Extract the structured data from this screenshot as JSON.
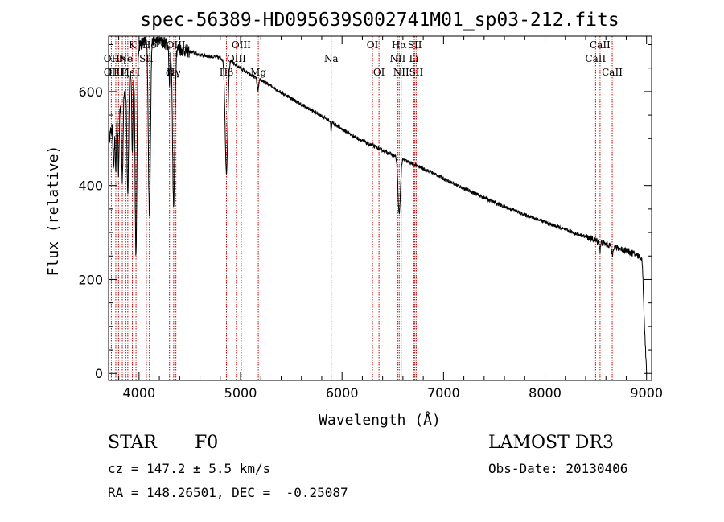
{
  "chart_data": {
    "type": "line",
    "title": "spec-56389-HD095639S002741M01_sp03-212.fits",
    "xlabel": "Wavelength (Å)",
    "ylabel": "Flux (relative)",
    "xlim": [
      3700,
      9050
    ],
    "ylim": [
      -15,
      718
    ],
    "xticks": [
      4000,
      5000,
      6000,
      7000,
      8000,
      9000
    ],
    "yticks": [
      0,
      200,
      400,
      600
    ],
    "series": [
      {
        "name": "spectrum",
        "continuum_knots": {
          "x": [
            3700,
            3800,
            3900,
            4000,
            4100,
            4200,
            4300,
            4400,
            4500,
            4600,
            4700,
            4800,
            4900,
            5000,
            5100,
            5200,
            5300,
            5400,
            5500,
            5600,
            5700,
            5800,
            5900,
            6000,
            6100,
            6200,
            6300,
            6400,
            6500,
            6600,
            6700,
            6800,
            6900,
            7000,
            7100,
            7200,
            7300,
            7400,
            7500,
            7600,
            7700,
            7800,
            7900,
            8000,
            8100,
            8200,
            8300,
            8400,
            8500,
            8600,
            8700,
            8800,
            8900,
            8950,
            8960,
            8980,
            9000
          ],
          "y": [
            500,
            560,
            630,
            700,
            712,
            708,
            700,
            690,
            685,
            678,
            675,
            672,
            665,
            650,
            635,
            625,
            612,
            598,
            586,
            572,
            560,
            548,
            535,
            520,
            507,
            495,
            485,
            475,
            465,
            455,
            446,
            436,
            426,
            415,
            404,
            394,
            384,
            374,
            364,
            355,
            347,
            338,
            330,
            322,
            314,
            306,
            298,
            291,
            283,
            275,
            268,
            262,
            252,
            245,
            230,
            100,
            5
          ]
        },
        "absorption_lines": [
          {
            "center": 3750,
            "depth": 90,
            "width": 6
          },
          {
            "center": 3771,
            "depth": 110,
            "width": 6
          },
          {
            "center": 3798,
            "depth": 130,
            "width": 6
          },
          {
            "center": 3835,
            "depth": 170,
            "width": 7
          },
          {
            "center": 3889,
            "depth": 240,
            "width": 8
          },
          {
            "center": 3934,
            "depth": 180,
            "width": 6
          },
          {
            "center": 3970,
            "depth": 430,
            "width": 9
          },
          {
            "center": 4102,
            "depth": 380,
            "width": 10
          },
          {
            "center": 4300,
            "depth": 80,
            "width": 6
          },
          {
            "center": 4341,
            "depth": 340,
            "width": 11
          },
          {
            "center": 4861,
            "depth": 240,
            "width": 13
          },
          {
            "center": 5172,
            "depth": 25,
            "width": 8
          },
          {
            "center": 5893,
            "depth": 20,
            "width": 4
          },
          {
            "center": 6563,
            "depth": 120,
            "width": 12
          },
          {
            "center": 8542,
            "depth": 18,
            "width": 5
          },
          {
            "center": 8662,
            "depth": 20,
            "width": 5
          }
        ]
      }
    ],
    "line_markers": [
      {
        "wavelength": 3727,
        "label": "OII",
        "row": 2
      },
      {
        "wavelength": 3727,
        "label": "OII",
        "row": 3
      },
      {
        "wavelength": 3771,
        "label": "Hθ",
        "row": 3
      },
      {
        "wavelength": 3798,
        "label": "Hη",
        "row": 2
      },
      {
        "wavelength": 3835,
        "label": "Hζ",
        "row": 3
      },
      {
        "wavelength": 3869,
        "label": "Ne",
        "row": 2
      },
      {
        "wavelength": 3889,
        "label": "Hε",
        "row": 3
      },
      {
        "wavelength": 3934,
        "label": "K",
        "row": 1
      },
      {
        "wavelength": 3970,
        "label": "H",
        "row": 3
      },
      {
        "wavelength": 4072,
        "label": "SII",
        "row": 2
      },
      {
        "wavelength": 4102,
        "label": "Hδ",
        "row": 1
      },
      {
        "wavelength": 4300,
        "label": "G",
        "row": 4
      },
      {
        "wavelength": 4341,
        "label": "Hγ",
        "row": 3
      },
      {
        "wavelength": 4363,
        "label": "OIII",
        "row": 1
      },
      {
        "wavelength": 4861,
        "label": "Hβ",
        "row": 3
      },
      {
        "wavelength": 4959,
        "label": "OIII",
        "row": 2
      },
      {
        "wavelength": 5007,
        "label": "OIII",
        "row": 1
      },
      {
        "wavelength": 5175,
        "label": "Mg",
        "row": 3
      },
      {
        "wavelength": 5893,
        "label": "Na",
        "row": 2
      },
      {
        "wavelength": 6300,
        "label": "OI",
        "row": 1
      },
      {
        "wavelength": 6364,
        "label": "OI",
        "row": 3
      },
      {
        "wavelength": 6548,
        "label": "NII",
        "row": 2
      },
      {
        "wavelength": 6563,
        "label": "Hα",
        "row": 1
      },
      {
        "wavelength": 6583,
        "label": "NII",
        "row": 3
      },
      {
        "wavelength": 6707,
        "label": "Li",
        "row": 2
      },
      {
        "wavelength": 6717,
        "label": "SII",
        "row": 1
      },
      {
        "wavelength": 6731,
        "label": "SII",
        "row": 3
      },
      {
        "wavelength": 8498,
        "label": "CaII",
        "row": 2
      },
      {
        "wavelength": 8542,
        "label": "CaII",
        "row": 1
      },
      {
        "wavelength": 8662,
        "label": "CaII",
        "row": 3
      }
    ],
    "colors": {
      "line": "#000000",
      "marker": "#cc0000",
      "axis": "#000000"
    }
  },
  "info": {
    "object_class": "STAR",
    "subclass": "F0",
    "redshift_line": "cz = 147.2 ± 5.5 km/s",
    "coords_line": "RA = 148.26501, DEC =  -0.25087",
    "survey": "LAMOST DR3",
    "obs_date_line": "Obs-Date: 20130406"
  }
}
